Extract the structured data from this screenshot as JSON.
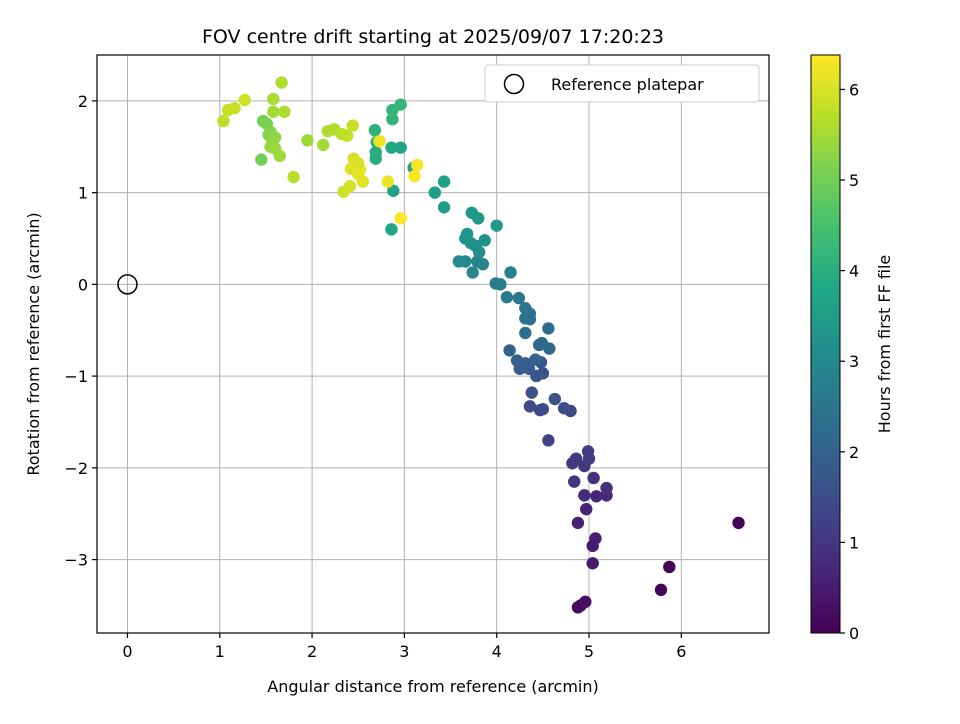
{
  "chart_data": {
    "type": "scatter",
    "title": "FOV centre drift starting at 2025/09/07 17:20:23",
    "xlabel": "Angular distance from reference (arcmin)",
    "ylabel": "Rotation from reference (arcmin)",
    "xlim": [
      -0.33,
      6.95
    ],
    "ylim": [
      -3.8,
      2.5
    ],
    "xticks": [
      0,
      1,
      2,
      3,
      4,
      5,
      6
    ],
    "yticks": [
      -3,
      -2,
      -1,
      0,
      1,
      2
    ],
    "grid": true,
    "legend": {
      "position": "top-right",
      "entries": [
        "Reference platepar"
      ]
    },
    "reference_point": {
      "x": 0,
      "y": 0
    },
    "colorbar": {
      "label": "Hours from first FF file",
      "colormap": "viridis",
      "min": 0,
      "max": 6.38,
      "ticks": [
        0,
        1,
        2,
        3,
        4,
        5,
        6
      ]
    },
    "series": [
      {
        "color_by": "hours",
        "points": [
          [
            6.62,
            -2.6,
            0.0
          ],
          [
            5.87,
            -3.08,
            0.05
          ],
          [
            5.78,
            -3.33,
            0.1
          ],
          [
            4.88,
            -3.52,
            0.15
          ],
          [
            4.91,
            -3.5,
            0.2
          ],
          [
            4.96,
            -3.46,
            0.25
          ],
          [
            5.04,
            -3.04,
            0.45
          ],
          [
            5.04,
            -2.85,
            0.5
          ],
          [
            5.07,
            -2.77,
            0.55
          ],
          [
            4.88,
            -2.6,
            0.6
          ],
          [
            4.97,
            -2.45,
            0.65
          ],
          [
            5.08,
            -2.31,
            0.7
          ],
          [
            5.19,
            -2.3,
            0.75
          ],
          [
            4.95,
            -2.3,
            0.8
          ],
          [
            5.19,
            -2.22,
            0.85
          ],
          [
            5.05,
            -2.11,
            0.9
          ],
          [
            4.84,
            -2.15,
            0.95
          ],
          [
            4.95,
            -1.98,
            1.0
          ],
          [
            4.82,
            -1.95,
            1.05
          ],
          [
            4.86,
            -1.9,
            1.1
          ],
          [
            5.0,
            -1.9,
            1.15
          ],
          [
            4.99,
            -1.82,
            1.2
          ],
          [
            4.56,
            -1.7,
            1.25
          ],
          [
            4.8,
            -1.38,
            1.3
          ],
          [
            4.47,
            -1.37,
            1.35
          ],
          [
            4.36,
            -1.33,
            1.4
          ],
          [
            4.5,
            -1.36,
            1.45
          ],
          [
            4.73,
            -1.35,
            1.5
          ],
          [
            4.63,
            -1.25,
            1.55
          ],
          [
            4.38,
            -1.18,
            1.6
          ],
          [
            4.5,
            -0.97,
            1.65
          ],
          [
            4.43,
            -1.0,
            1.7
          ],
          [
            4.48,
            -0.85,
            1.75
          ],
          [
            4.35,
            -0.92,
            1.8
          ],
          [
            4.25,
            -0.92,
            1.85
          ],
          [
            4.31,
            -0.86,
            1.9
          ],
          [
            4.22,
            -0.83,
            1.95
          ],
          [
            4.14,
            -0.72,
            2.0
          ],
          [
            4.42,
            -0.82,
            2.05
          ],
          [
            4.46,
            -0.66,
            2.1
          ],
          [
            4.49,
            -0.64,
            2.15
          ],
          [
            4.57,
            -0.7,
            2.2
          ],
          [
            4.56,
            -0.48,
            2.25
          ],
          [
            4.31,
            -0.53,
            2.3
          ],
          [
            4.36,
            -0.38,
            2.35
          ],
          [
            4.31,
            -0.37,
            2.4
          ],
          [
            4.36,
            -0.32,
            2.45
          ],
          [
            4.31,
            -0.26,
            2.5
          ],
          [
            4.24,
            -0.15,
            2.55
          ],
          [
            4.11,
            -0.14,
            2.6
          ],
          [
            4.04,
            0.0,
            2.65
          ],
          [
            3.99,
            0.01,
            2.7
          ],
          [
            4.15,
            0.13,
            2.75
          ],
          [
            3.85,
            0.22,
            2.8
          ],
          [
            3.79,
            0.25,
            2.85
          ],
          [
            3.74,
            0.13,
            2.9
          ],
          [
            3.66,
            0.25,
            2.95
          ],
          [
            3.59,
            0.25,
            3.0
          ],
          [
            3.81,
            0.35,
            3.05
          ],
          [
            3.77,
            0.42,
            3.1
          ],
          [
            3.72,
            0.45,
            3.15
          ],
          [
            3.87,
            0.48,
            3.2
          ],
          [
            3.66,
            0.5,
            3.25
          ],
          [
            3.68,
            0.55,
            3.3
          ],
          [
            3.73,
            0.78,
            3.35
          ],
          [
            3.8,
            0.72,
            3.4
          ],
          [
            4.0,
            0.64,
            3.45
          ],
          [
            3.43,
            0.84,
            3.5
          ],
          [
            3.33,
            1.0,
            3.55
          ],
          [
            3.43,
            1.12,
            3.6
          ],
          [
            3.1,
            1.27,
            3.65
          ],
          [
            2.88,
            1.02,
            3.7
          ],
          [
            2.86,
            0.6,
            3.75
          ],
          [
            2.96,
            1.49,
            3.8
          ],
          [
            2.86,
            1.49,
            3.85
          ],
          [
            2.69,
            1.37,
            3.9
          ],
          [
            2.69,
            1.44,
            3.95
          ],
          [
            2.7,
            1.55,
            4.0
          ],
          [
            2.68,
            1.68,
            4.05
          ],
          [
            2.87,
            1.8,
            4.1
          ],
          [
            2.87,
            1.9,
            4.15
          ],
          [
            2.96,
            1.96,
            4.2
          ],
          [
            1.45,
            1.36,
            5.0
          ],
          [
            1.47,
            1.78,
            5.05
          ],
          [
            1.51,
            1.75,
            5.1
          ],
          [
            1.53,
            1.63,
            5.15
          ],
          [
            1.55,
            1.66,
            5.2
          ],
          [
            1.57,
            1.54,
            5.25
          ],
          [
            1.6,
            1.6,
            5.3
          ],
          [
            1.55,
            1.5,
            5.35
          ],
          [
            1.6,
            1.48,
            5.4
          ],
          [
            1.65,
            1.4,
            5.45
          ],
          [
            1.58,
            1.88,
            5.5
          ],
          [
            1.58,
            2.02,
            5.55
          ],
          [
            1.7,
            1.88,
            5.6
          ],
          [
            1.67,
            2.2,
            5.65
          ],
          [
            1.8,
            1.17,
            5.7
          ],
          [
            1.04,
            1.78,
            5.75
          ],
          [
            1.09,
            1.9,
            5.8
          ],
          [
            1.16,
            1.92,
            5.85
          ],
          [
            1.27,
            2.01,
            5.9
          ],
          [
            1.95,
            1.57,
            5.45
          ],
          [
            2.12,
            1.52,
            5.5
          ],
          [
            2.17,
            1.67,
            5.6
          ],
          [
            2.24,
            1.69,
            5.65
          ],
          [
            2.32,
            1.64,
            5.7
          ],
          [
            2.38,
            1.62,
            5.8
          ],
          [
            2.44,
            1.73,
            5.85
          ],
          [
            2.34,
            1.01,
            5.9
          ],
          [
            2.41,
            1.07,
            5.95
          ],
          [
            2.45,
            1.37,
            6.0
          ],
          [
            2.42,
            1.26,
            6.05
          ],
          [
            2.5,
            1.2,
            6.1
          ],
          [
            2.52,
            1.25,
            6.15
          ],
          [
            2.5,
            1.32,
            6.0
          ],
          [
            2.55,
            1.12,
            6.1
          ],
          [
            2.82,
            1.12,
            6.2
          ],
          [
            2.73,
            1.56,
            6.25
          ],
          [
            3.14,
            1.3,
            6.3
          ],
          [
            3.11,
            1.18,
            6.33
          ],
          [
            2.96,
            0.72,
            6.38
          ]
        ]
      }
    ]
  }
}
